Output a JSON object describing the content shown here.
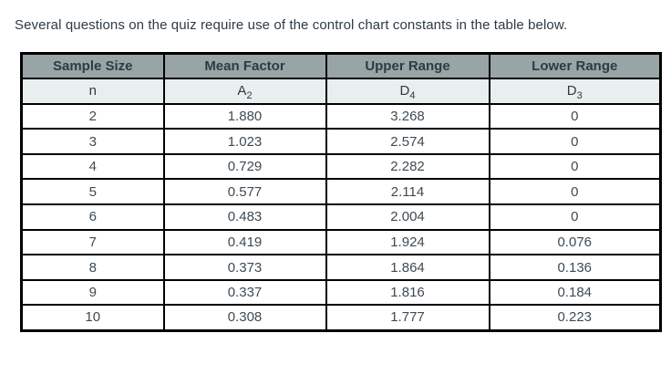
{
  "page": {
    "intro_text": "Several questions on the quiz require use of the control chart constants in the table below."
  },
  "colors": {
    "header_bg": "#98A4A6",
    "subheader_bg": "#E9EEEE",
    "border": "#000000",
    "heading_text": "#2D3B45",
    "data_text": "#3D4B55",
    "page_bg": "#FFFFFF"
  },
  "table": {
    "headers": [
      "Sample Size",
      "Mean Factor",
      "Upper Range",
      "Lower Range"
    ],
    "subheaders": [
      {
        "base": "n",
        "sub": ""
      },
      {
        "base": "A",
        "sub": "2"
      },
      {
        "base": "D",
        "sub": "4"
      },
      {
        "base": "D",
        "sub": "3"
      }
    ],
    "rows": [
      [
        "2",
        "1.880",
        "3.268",
        "0"
      ],
      [
        "3",
        "1.023",
        "2.574",
        "0"
      ],
      [
        "4",
        "0.729",
        "2.282",
        "0"
      ],
      [
        "5",
        "0.577",
        "2.114",
        "0"
      ],
      [
        "6",
        "0.483",
        "2.004",
        "0"
      ],
      [
        "7",
        "0.419",
        "1.924",
        "0.076"
      ],
      [
        "8",
        "0.373",
        "1.864",
        "0.136"
      ],
      [
        "9",
        "0.337",
        "1.816",
        "0.184"
      ],
      [
        "10",
        "0.308",
        "1.777",
        "0.223"
      ]
    ]
  }
}
